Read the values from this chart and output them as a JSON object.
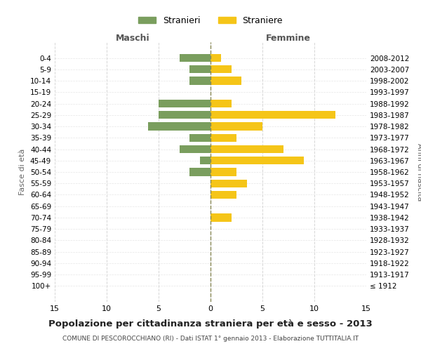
{
  "age_groups": [
    "100+",
    "95-99",
    "90-94",
    "85-89",
    "80-84",
    "75-79",
    "70-74",
    "65-69",
    "60-64",
    "55-59",
    "50-54",
    "45-49",
    "40-44",
    "35-39",
    "30-34",
    "25-29",
    "20-24",
    "15-19",
    "10-14",
    "5-9",
    "0-4"
  ],
  "birth_years": [
    "≤ 1912",
    "1913-1917",
    "1918-1922",
    "1923-1927",
    "1928-1932",
    "1933-1937",
    "1938-1942",
    "1943-1947",
    "1948-1952",
    "1953-1957",
    "1958-1962",
    "1963-1967",
    "1968-1972",
    "1973-1977",
    "1978-1982",
    "1983-1987",
    "1988-1992",
    "1993-1997",
    "1998-2002",
    "2003-2007",
    "2008-2012"
  ],
  "males": [
    0,
    0,
    0,
    0,
    0,
    0,
    0,
    0,
    0,
    0,
    2,
    1,
    3,
    2,
    6,
    5,
    5,
    0,
    2,
    2,
    3
  ],
  "females": [
    0,
    0,
    0,
    0,
    0,
    0,
    2,
    0,
    2.5,
    3.5,
    2.5,
    9,
    7,
    2.5,
    5,
    12,
    2,
    0,
    3,
    2,
    1
  ],
  "male_color": "#7a9e5e",
  "female_color": "#f5c518",
  "title": "Popolazione per cittadinanza straniera per età e sesso - 2013",
  "subtitle": "COMUNE DI PESCOROCCHIANO (RI) - Dati ISTAT 1° gennaio 2013 - Elaborazione TUTTITALIA.IT",
  "xlabel_left": "Maschi",
  "xlabel_right": "Femmine",
  "ylabel_left": "Fasce di età",
  "ylabel_right": "Anni di nascita",
  "legend_male": "Stranieri",
  "legend_female": "Straniere",
  "xlim": 15,
  "background_color": "#ffffff",
  "grid_color": "#cccccc"
}
